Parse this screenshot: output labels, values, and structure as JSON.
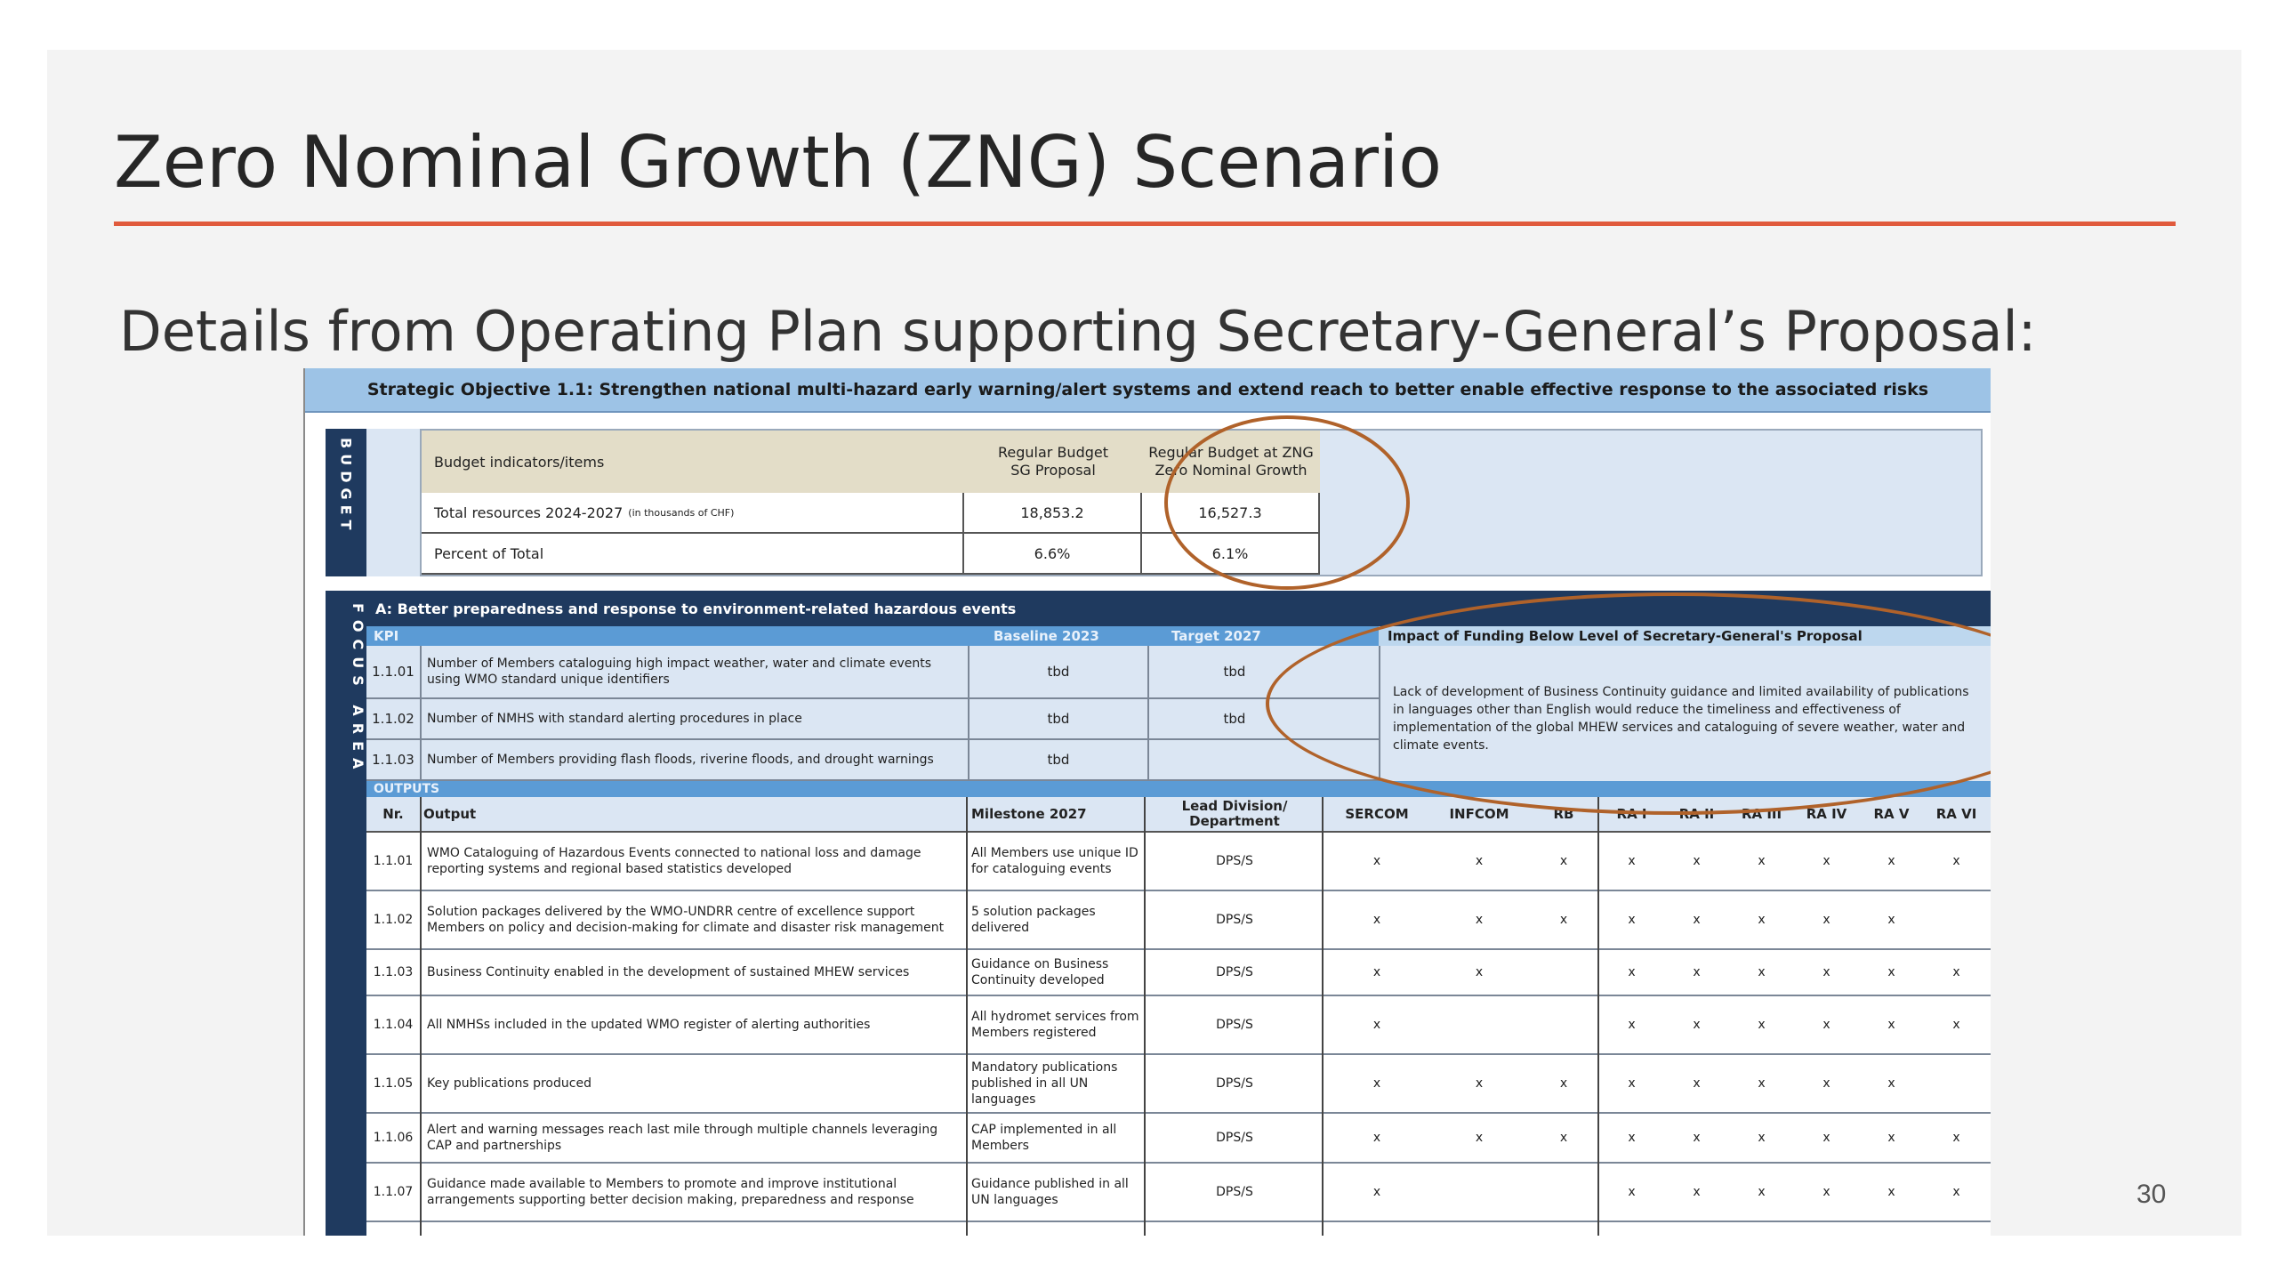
{
  "title": "Zero Nominal Growth (ZNG) Scenario",
  "subtitle": "Details from Operating Plan supporting Secretary-General’s Proposal:",
  "page_number": "30",
  "accent_color": "#e05a3c",
  "table": {
    "strategic_objective": "Strategic Objective 1.1: Strengthen national multi-hazard early warning/alert systems and extend reach to better enable effective response to the associated risks",
    "budget": {
      "side_label": "BUDGET",
      "head_item": "Budget indicators/items",
      "head_sg": "Regular Budget SG Proposal",
      "head_zng": "Regular Budget at ZNG Zero Nominal Growth",
      "row1_label": "Total resources 2024-2027",
      "row1_unit": "(in thousands of CHF)",
      "row1_sg": "18,853.2",
      "row1_zng": "16,527.3",
      "row2_label": "Percent of Total",
      "row2_sg": "6.6%",
      "row2_zng": "6.1%"
    },
    "focus": {
      "side_label": "FOCUS AREA",
      "header": "A: Better preparedness and response to environment-related hazardous events",
      "kpi_label": "KPI",
      "baseline_label": "Baseline 2023",
      "target_label": "Target 2027",
      "impact_label": "Impact of Funding Below Level of Secretary-General's Proposal",
      "impact_text": "Lack of development of Business Continuity guidance and limited availability of publications in languages other than English would reduce the timeliness and effectiveness of implementation of the global MHEW services and cataloguing of severe weather, water and climate events.",
      "kpis": [
        {
          "nr": "1.1.01",
          "text": "Number of Members cataloguing high impact weather, water and climate events using WMO standard unique identifiers",
          "baseline": "tbd",
          "target": "tbd"
        },
        {
          "nr": "1.1.02",
          "text": "Number of NMHS with standard alerting procedures in place",
          "baseline": "tbd",
          "target": "tbd"
        },
        {
          "nr": "1.1.03",
          "text": "Number of Members providing flash floods, riverine floods, and drought warnings",
          "baseline": "tbd",
          "target": ""
        }
      ],
      "outputs_label": "OUTPUTS",
      "columns": {
        "nr": "Nr.",
        "output": "Output",
        "milestone": "Milestone 2027",
        "lead": "Lead Division/ Department",
        "sercom": "SERCOM",
        "infcom": "INFCOM",
        "rb": "RB",
        "ra1": "RA I",
        "ra2": "RA II",
        "ra3": "RA III",
        "ra4": "RA IV",
        "ra5": "RA V",
        "ra6": "RA VI"
      },
      "outputs": [
        {
          "nr": "1.1.01",
          "output": "WMO Cataloguing of Hazardous Events connected to national loss and damage reporting systems and regional based statistics developed",
          "milestone": "All Members use unique ID for cataloguing events",
          "lead": "DPS/S",
          "marks": [
            "x",
            "x",
            "x",
            "x",
            "x",
            "x",
            "x",
            "x",
            "x"
          ]
        },
        {
          "nr": "1.1.02",
          "output": "Solution packages delivered by the WMO-UNDRR centre of excellence support Members on policy and decision-making for climate and disaster risk management",
          "milestone": "5 solution packages delivered",
          "lead": "DPS/S",
          "marks": [
            "x",
            "x",
            "x",
            "x",
            "x",
            "x",
            "x",
            "x",
            ""
          ]
        },
        {
          "nr": "1.1.03",
          "output": "Business Continuity enabled in the development of sustained MHEW services",
          "milestone": "Guidance on Business Continuity developed",
          "lead": "DPS/S",
          "marks": [
            "x",
            "x",
            "",
            "x",
            "x",
            "x",
            "x",
            "x",
            "x"
          ]
        },
        {
          "nr": "1.1.04",
          "output": "All NMHSs included in the updated WMO register of alerting authorities",
          "milestone": "All hydromet services from Members registered",
          "lead": "DPS/S",
          "marks": [
            "x",
            "",
            "",
            "x",
            "x",
            "x",
            "x",
            "x",
            "x"
          ]
        },
        {
          "nr": "1.1.05",
          "output": "Key publications produced",
          "milestone": "Mandatory publications published in all UN languages",
          "lead": "DPS/S",
          "marks": [
            "x",
            "x",
            "x",
            "x",
            "x",
            "x",
            "x",
            "x",
            ""
          ]
        },
        {
          "nr": "1.1.06",
          "output": "Alert and warning messages reach last mile through multiple channels leveraging CAP and partnerships",
          "milestone": "CAP implemented in all Members",
          "lead": "DPS/S",
          "marks": [
            "x",
            "x",
            "x",
            "x",
            "x",
            "x",
            "x",
            "x",
            "x"
          ]
        },
        {
          "nr": "1.1.07",
          "output": "Guidance made available to Members to promote and improve institutional arrangements supporting better decision making, preparedness and response",
          "milestone": "Guidance published in all UN languages",
          "lead": "DPS/S",
          "marks": [
            "x",
            "",
            "",
            "x",
            "x",
            "x",
            "x",
            "x",
            "x"
          ]
        }
      ]
    }
  }
}
